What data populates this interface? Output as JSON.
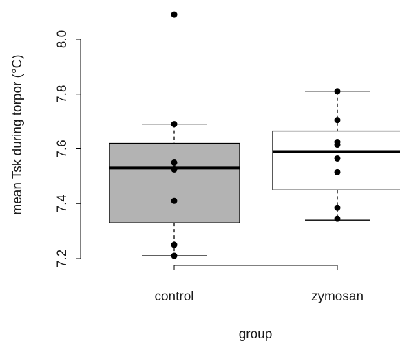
{
  "chart_data": {
    "type": "box",
    "xlabel": "group",
    "ylabel": "mean Tsk during torpor (°C)",
    "ylim": [
      7.2,
      8.0
    ],
    "yticks": [
      7.2,
      7.4,
      7.6,
      7.8,
      8.0
    ],
    "ytick_labels": [
      "7.2",
      "7.4",
      "7.6",
      "7.8",
      "8.0"
    ],
    "categories": [
      "control",
      "zymosan"
    ],
    "grid": false,
    "boxes": [
      {
        "group": "control",
        "fill": "#b3b3b3",
        "whisker_low": 7.21,
        "q1": 7.33,
        "median": 7.53,
        "q3": 7.62,
        "whisker_high": 7.69,
        "points": [
          8.09,
          7.69,
          7.55,
          7.525,
          7.41,
          7.25,
          7.21
        ]
      },
      {
        "group": "zymosan",
        "fill": "#ffffff",
        "whisker_low": 7.34,
        "q1": 7.45,
        "median": 7.59,
        "q3": 7.665,
        "whisker_high": 7.81,
        "points": [
          7.81,
          7.705,
          7.625,
          7.615,
          7.565,
          7.515,
          7.385,
          7.345
        ]
      }
    ]
  }
}
